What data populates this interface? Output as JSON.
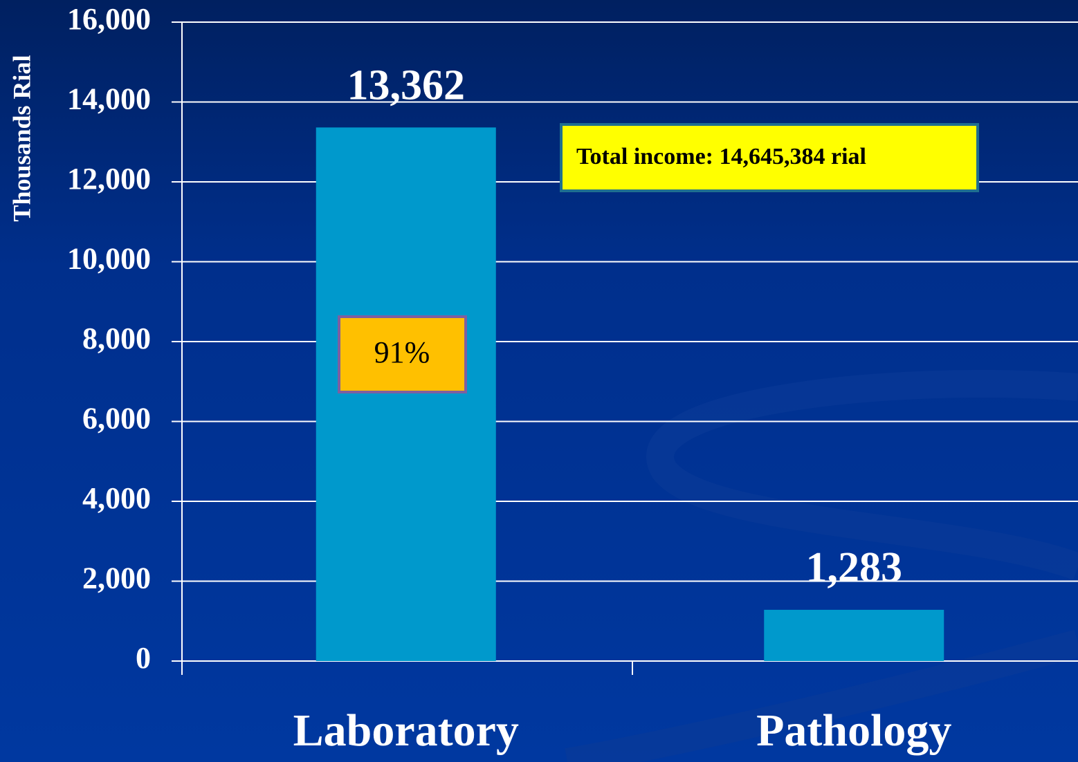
{
  "chart_data": {
    "type": "bar",
    "y_axis_label": "Thousands Rial",
    "categories": [
      "Laboratory",
      "Pathology"
    ],
    "values": [
      13362,
      1283
    ],
    "value_labels": [
      "13,362",
      "1,283"
    ],
    "color": "#0099cc",
    "ylim": [
      0,
      16000
    ],
    "yticks": [
      0,
      {
        "value": 2000,
        "label": "2,000"
      },
      {
        "value": 4000,
        "label": "4,000"
      },
      {
        "value": 6000,
        "label": "6,000"
      },
      {
        "value": 8000,
        "label": "8,000"
      },
      {
        "value": 10000,
        "label": "10,000"
      },
      {
        "value": 12000,
        "label": "12,000"
      },
      {
        "value": 14000,
        "label": "14,000"
      },
      {
        "value": 16000,
        "label": "16,000"
      }
    ],
    "grid": true,
    "annotations": [
      "Total income:  14,645,384 rial",
      "91%"
    ]
  }
}
